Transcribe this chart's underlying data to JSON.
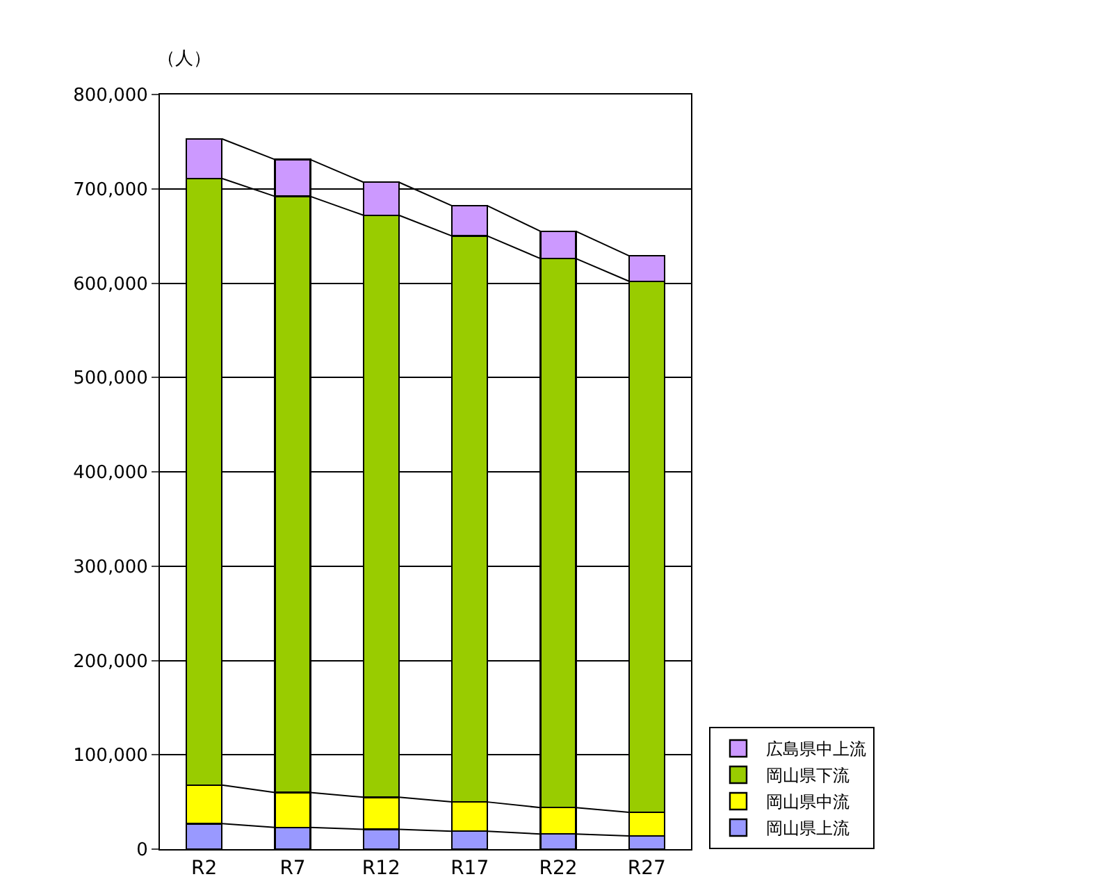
{
  "chart_data": {
    "type": "bar",
    "stacked": true,
    "ylabel": "（人）",
    "categories": [
      "R2",
      "R7",
      "R12",
      "R17",
      "R22",
      "R27"
    ],
    "series": [
      {
        "name": "岡山県上流",
        "color": "#9999ff",
        "values": [
          27000,
          23000,
          21000,
          19000,
          16000,
          14000
        ]
      },
      {
        "name": "岡山県中流",
        "color": "#ffff00",
        "values": [
          41000,
          37000,
          34000,
          31000,
          28000,
          25000
        ]
      },
      {
        "name": "岡山県下流",
        "color": "#99cc00",
        "values": [
          643000,
          632000,
          617000,
          600000,
          582000,
          563000
        ]
      },
      {
        "name": "広島県中上流",
        "color": "#cc99ff",
        "values": [
          42000,
          39000,
          35000,
          32000,
          29000,
          27000
        ]
      }
    ],
    "ylim": [
      0,
      800000
    ],
    "yticks": [
      0,
      {
        "value": 100000,
        "label": "100,000"
      },
      {
        "value": 200000,
        "label": "200,000"
      },
      {
        "value": 300000,
        "label": "300,000"
      },
      {
        "value": 400000,
        "label": "400,000"
      },
      {
        "value": 500000,
        "label": "500,000"
      },
      {
        "value": 600000,
        "label": "600,000"
      },
      {
        "value": 700000,
        "label": "700,000"
      },
      {
        "value": 800000,
        "label": "800,000"
      }
    ],
    "grid": "y",
    "legend": "bottom right"
  }
}
